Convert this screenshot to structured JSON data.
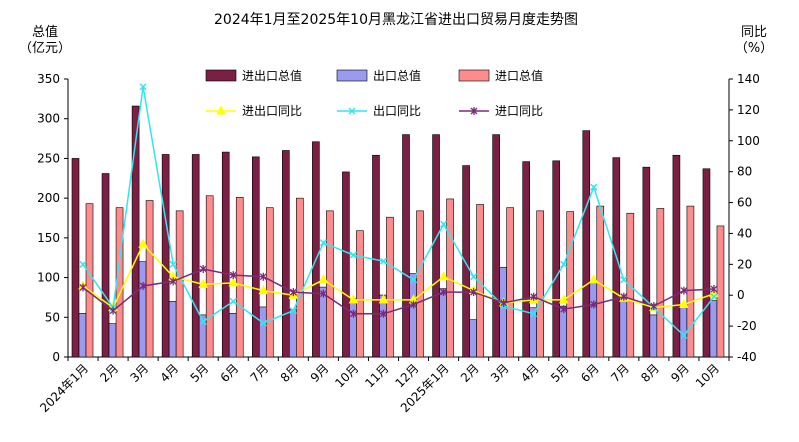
{
  "chart_data": {
    "type": "bar",
    "title": "2024年1月至2025年10月黑龙江省进出口贸易月度走势图",
    "ylabel_left": [
      "总值",
      "（亿元）"
    ],
    "ylabel_right": [
      "同比",
      "（%）"
    ],
    "ylim_left": [
      0,
      350
    ],
    "yticks_left": [
      0,
      50,
      100,
      150,
      200,
      250,
      300,
      350
    ],
    "ylim_right": [
      -40,
      140
    ],
    "yticks_right": [
      -40,
      -20,
      0,
      20,
      40,
      60,
      80,
      100,
      120,
      140
    ],
    "categories": [
      "2024年1月",
      "2月",
      "3月",
      "4月",
      "5月",
      "6月",
      "7月",
      "8月",
      "9月",
      "10月",
      "11月",
      "12月",
      "2025年1月",
      "2月",
      "3月",
      "4月",
      "5月",
      "6月",
      "7月",
      "8月",
      "9月",
      "10月"
    ],
    "bar_series": [
      {
        "name": "进出口总值",
        "color": "#7b1f45",
        "values": [
          250,
          231,
          316,
          255,
          255,
          258,
          252,
          260,
          271,
          233,
          254,
          280,
          280,
          241,
          280,
          246,
          247,
          285,
          251,
          239,
          254,
          237
        ]
      },
      {
        "name": "出口总值",
        "color": "#9a9aef",
        "values": [
          55,
          42,
          120,
          70,
          53,
          55,
          63,
          60,
          88,
          74,
          78,
          105,
          86,
          47,
          113,
          62,
          64,
          95,
          71,
          53,
          64,
          71
        ]
      },
      {
        "name": "进口总值",
        "color": "#ff8c8c",
        "values": [
          193,
          188,
          197,
          184,
          203,
          201,
          188,
          200,
          184,
          159,
          176,
          184,
          199,
          192,
          188,
          184,
          183,
          190,
          181,
          187,
          190,
          165
        ]
      }
    ],
    "line_series": [
      {
        "name": "进出口同比",
        "color": "#ffff00",
        "marker": "triangle",
        "values": [
          6,
          -8,
          33,
          12,
          7,
          8,
          3,
          0,
          10,
          -3,
          -3,
          -3,
          12,
          3,
          -5,
          -3,
          -3,
          10,
          -2,
          -8,
          -6,
          1
        ]
      },
      {
        "name": "出口同比",
        "color": "#33e6ee",
        "marker": "x",
        "values": [
          20,
          -8,
          135,
          20,
          -17,
          -4,
          -18,
          -10,
          34,
          26,
          22,
          10,
          46,
          12,
          -7,
          -12,
          20,
          70,
          10,
          -8,
          -26,
          -1
        ]
      },
      {
        "name": "进口同比",
        "color": "#7b2a7b",
        "marker": "star",
        "values": [
          5,
          -10,
          6,
          9,
          17,
          13,
          12,
          2,
          1,
          -12,
          -12,
          -6,
          2,
          2,
          -5,
          -1,
          -9,
          -6,
          -1,
          -7,
          3,
          4
        ]
      }
    ]
  }
}
